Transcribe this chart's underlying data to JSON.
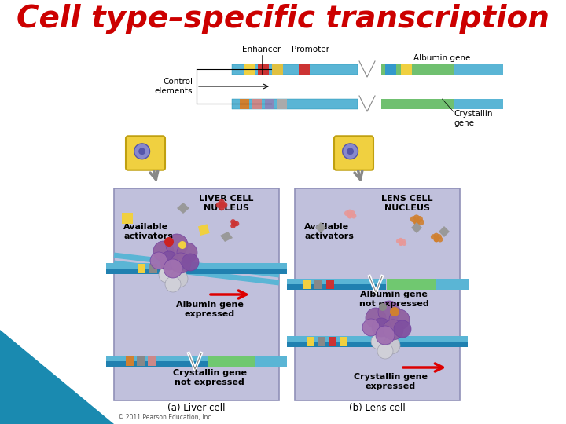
{
  "title": "Cell type–specific transcription",
  "title_color": "#cc0000",
  "title_fontsize": 28,
  "title_fontweight": "bold",
  "title_fontstyle": "italic",
  "bg_color": "#ffffff",
  "fig_width": 7.2,
  "fig_height": 5.4,
  "subtitle_a": "(a) Liver cell",
  "subtitle_b": "(b) Lens cell",
  "copyright": "© 2011 Pearson Education, Inc.",
  "left_panel_bg": "#c0c0dc",
  "right_panel_bg": "#c0c0dc",
  "teal_corner": "#1a8ab0",
  "nucleus_left_label": "LIVER CELL\nNUCLEUS",
  "nucleus_right_label": "LENS CELL\nNUCLEUS",
  "label_available_activators": "Available\nactivators",
  "label_albumin_expressed": "Albumin gene\nexpressed",
  "label_albumin_not_expressed": "Albumin gene\nnot expressed",
  "label_crystallin_not_expressed": "Crystallin gene\nnot expressed",
  "label_crystallin_expressed": "Crystallin gene\nexpressed",
  "label_control_elements": "Control\nelements",
  "label_enhancer": "Enhancer",
  "label_promoter": "Promoter",
  "label_albumin_gene": "Albumin gene",
  "label_crystallin_gene": "Crystallin\ngene",
  "arrow_color": "#dd0000",
  "dna_blue": "#5ab5d5",
  "dna_dark_blue": "#2080b0",
  "dna_green": "#70c070",
  "dna_stripe_colors_top": [
    "#f0d040",
    "#cc3333",
    "#e0c040",
    "#aaaaaa",
    "#3399cc",
    "#f0d040"
  ],
  "dna_stripe_colors_bot": [
    "#d08030",
    "#cc8888",
    "#8888cc",
    "#aaaaaa",
    "#50c0d0",
    "#80c080"
  ],
  "panel_edge_color": "#9090b8"
}
